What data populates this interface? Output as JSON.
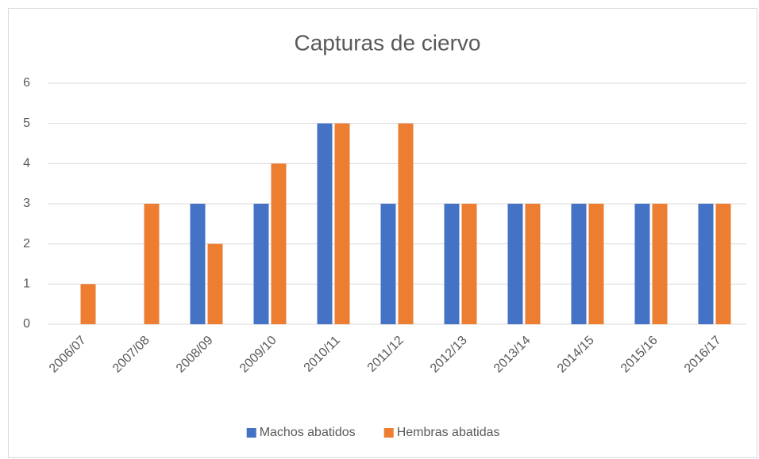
{
  "chart_data": {
    "type": "bar",
    "title": "Capturas de ciervo",
    "categories": [
      "2006/07",
      "2007/08",
      "2008/09",
      "2009/10",
      "2010/11",
      "2011/12",
      "2012/13",
      "2013/14",
      "2014/15",
      "2015/16",
      "2016/17"
    ],
    "series": [
      {
        "name": "Machos abatidos",
        "color": "#4472c4",
        "values": [
          0,
          0,
          3,
          3,
          5,
          3,
          3,
          3,
          3,
          3,
          3
        ]
      },
      {
        "name": "Hembras abatidas",
        "color": "#ed7d31",
        "values": [
          1,
          3,
          2,
          4,
          5,
          5,
          3,
          3,
          3,
          3,
          3
        ]
      }
    ],
    "ylim": [
      0,
      6
    ],
    "yticks": [
      0,
      1,
      2,
      3,
      4,
      5,
      6
    ],
    "grid": true,
    "legend": "bottom"
  }
}
